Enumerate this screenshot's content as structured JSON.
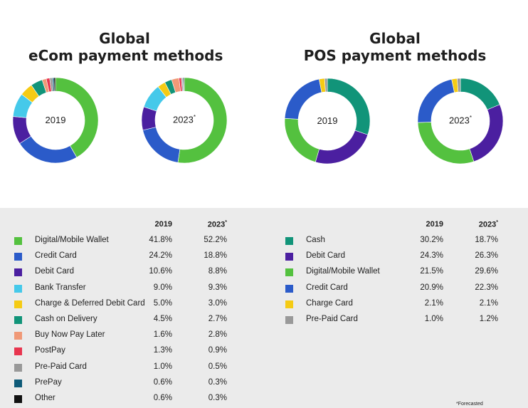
{
  "titles": {
    "ecom_line1": "Global",
    "ecom_line2": "eCom payment methods",
    "pos_line1": "Global",
    "pos_line2": "POS payment methods"
  },
  "columns": {
    "y2019": "2019",
    "y2023": "2023",
    "forecast_mark": "*"
  },
  "footnote": "*Forecasted",
  "chart_data": [
    {
      "type": "pie",
      "title": "Global eCom payment methods",
      "donut": true,
      "charts": [
        "2019",
        "2023*"
      ],
      "categories": [
        "Digital/Mobile Wallet",
        "Credit Card",
        "Debit Card",
        "Bank Transfer",
        "Charge & Deferred Debit Card",
        "Cash on Delivery",
        "Buy Now Pay Later",
        "PostPay",
        "Pre-Paid Card",
        "PrePay",
        "Other"
      ],
      "colors": [
        "#54c13f",
        "#2b5bc9",
        "#4b1fa0",
        "#45c9ea",
        "#f5cb14",
        "#119479",
        "#f09977",
        "#e8354f",
        "#999999",
        "#0e5a78",
        "#111111"
      ],
      "series": [
        {
          "name": "2019",
          "values": [
            41.8,
            24.2,
            10.6,
            9.0,
            5.0,
            4.5,
            1.6,
            1.3,
            1.0,
            0.6,
            0.6
          ],
          "labels": [
            "41.8%",
            "24.2%",
            "10.6%",
            "9.0%",
            "5.0%",
            "4.5%",
            "1.6%",
            "1.3%",
            "1.0%",
            "0.6%",
            "0.6%"
          ]
        },
        {
          "name": "2023*",
          "values": [
            52.2,
            18.8,
            8.8,
            9.3,
            3.0,
            2.7,
            2.8,
            0.9,
            0.5,
            0.3,
            0.3
          ],
          "labels": [
            "52.2%",
            "18.8%",
            "8.8%",
            "9.3%",
            "3.0%",
            "2.7%",
            "2.8%",
            "0.9%",
            "0.5%",
            "0.3%",
            "0.3%"
          ]
        }
      ]
    },
    {
      "type": "pie",
      "title": "Global POS payment methods",
      "donut": true,
      "charts": [
        "2019",
        "2023*"
      ],
      "categories": [
        "Cash",
        "Debit Card",
        "Digital/Mobile Wallet",
        "Credit Card",
        "Charge Card",
        "Pre-Paid Card"
      ],
      "colors": [
        "#119479",
        "#4b1fa0",
        "#54c13f",
        "#2b5bc9",
        "#f5cb14",
        "#999999"
      ],
      "series": [
        {
          "name": "2019",
          "values": [
            30.2,
            24.3,
            21.5,
            20.9,
            2.1,
            1.0
          ],
          "labels": [
            "30.2%",
            "24.3%",
            "21.5%",
            "20.9%",
            "2.1%",
            "1.0%"
          ]
        },
        {
          "name": "2023*",
          "values": [
            18.7,
            26.3,
            29.6,
            22.3,
            2.1,
            1.2
          ],
          "labels": [
            "18.7%",
            "26.3%",
            "29.6%",
            "22.3%",
            "2.1%",
            "1.2%"
          ]
        }
      ]
    }
  ]
}
